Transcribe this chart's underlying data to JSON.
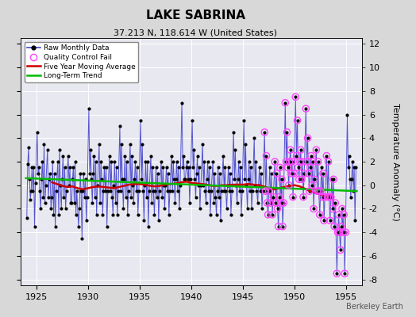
{
  "title": "LAKE SABRINA",
  "subtitle": "37.213 N, 118.614 W (United States)",
  "ylabel": "Temperature Anomaly (°C)",
  "watermark": "Berkeley Earth",
  "xlim": [
    1923.5,
    1956.5
  ],
  "ylim": [
    -8.5,
    12.5
  ],
  "yticks": [
    -8,
    -6,
    -4,
    -2,
    0,
    2,
    4,
    6,
    8,
    10,
    12
  ],
  "xticks": [
    1925,
    1930,
    1935,
    1940,
    1945,
    1950,
    1955
  ],
  "bg_color": "#d8d8d8",
  "plot_bg_color": "#e8e8f0",
  "grid_color": "#ffffff",
  "line_color": "#4444cc",
  "ma_color": "#cc0000",
  "trend_color": "#00bb00",
  "marker_color": "#000000",
  "qc_color": "#ff44ff",
  "raw_data": [
    [
      1924.08,
      -2.8
    ],
    [
      1924.17,
      1.8
    ],
    [
      1924.25,
      3.2
    ],
    [
      1924.33,
      0.5
    ],
    [
      1924.42,
      -1.2
    ],
    [
      1924.5,
      -0.5
    ],
    [
      1924.58,
      1.5
    ],
    [
      1924.67,
      -0.5
    ],
    [
      1924.75,
      1.5
    ],
    [
      1924.83,
      -3.5
    ],
    [
      1924.92,
      0.2
    ],
    [
      1925.08,
      4.5
    ],
    [
      1925.17,
      1.0
    ],
    [
      1925.25,
      1.5
    ],
    [
      1925.33,
      -0.5
    ],
    [
      1925.42,
      -2.0
    ],
    [
      1925.5,
      0.5
    ],
    [
      1925.58,
      2.0
    ],
    [
      1925.67,
      -1.0
    ],
    [
      1925.75,
      3.5
    ],
    [
      1925.83,
      -1.5
    ],
    [
      1925.92,
      0.0
    ],
    [
      1926.08,
      3.0
    ],
    [
      1926.17,
      -1.0
    ],
    [
      1926.25,
      0.5
    ],
    [
      1926.33,
      1.0
    ],
    [
      1926.42,
      -2.0
    ],
    [
      1926.5,
      -1.0
    ],
    [
      1926.58,
      2.0
    ],
    [
      1926.67,
      -2.5
    ],
    [
      1926.75,
      1.0
    ],
    [
      1926.83,
      -3.5
    ],
    [
      1926.92,
      -0.5
    ],
    [
      1927.08,
      2.0
    ],
    [
      1927.17,
      -2.5
    ],
    [
      1927.25,
      3.0
    ],
    [
      1927.33,
      0.0
    ],
    [
      1927.42,
      -2.0
    ],
    [
      1927.5,
      0.5
    ],
    [
      1927.58,
      2.5
    ],
    [
      1927.67,
      -1.0
    ],
    [
      1927.75,
      1.5
    ],
    [
      1927.83,
      -2.0
    ],
    [
      1927.92,
      -0.5
    ],
    [
      1928.08,
      2.5
    ],
    [
      1928.17,
      0.0
    ],
    [
      1928.25,
      1.5
    ],
    [
      1928.33,
      -1.5
    ],
    [
      1928.42,
      -1.5
    ],
    [
      1928.5,
      0.5
    ],
    [
      1928.58,
      1.5
    ],
    [
      1928.67,
      -1.5
    ],
    [
      1928.75,
      2.0
    ],
    [
      1928.83,
      -2.5
    ],
    [
      1928.92,
      -0.5
    ],
    [
      1929.08,
      -3.5
    ],
    [
      1929.17,
      -2.0
    ],
    [
      1929.25,
      1.0
    ],
    [
      1929.33,
      -0.5
    ],
    [
      1929.42,
      -4.5
    ],
    [
      1929.5,
      -0.5
    ],
    [
      1929.58,
      1.0
    ],
    [
      1929.67,
      -1.0
    ],
    [
      1929.75,
      0.5
    ],
    [
      1929.83,
      -3.0
    ],
    [
      1929.92,
      -1.0
    ],
    [
      1930.08,
      6.5
    ],
    [
      1930.17,
      1.0
    ],
    [
      1930.25,
      3.0
    ],
    [
      1930.33,
      0.5
    ],
    [
      1930.42,
      -1.5
    ],
    [
      1930.5,
      1.0
    ],
    [
      1930.58,
      2.5
    ],
    [
      1930.67,
      -1.0
    ],
    [
      1930.75,
      2.0
    ],
    [
      1930.83,
      -2.5
    ],
    [
      1930.92,
      0.0
    ],
    [
      1931.08,
      3.5
    ],
    [
      1931.17,
      -1.5
    ],
    [
      1931.25,
      2.0
    ],
    [
      1931.33,
      0.5
    ],
    [
      1931.42,
      -2.5
    ],
    [
      1931.5,
      -0.5
    ],
    [
      1931.58,
      1.5
    ],
    [
      1931.67,
      -0.5
    ],
    [
      1931.75,
      1.5
    ],
    [
      1931.83,
      -3.5
    ],
    [
      1931.92,
      -0.5
    ],
    [
      1932.08,
      2.5
    ],
    [
      1932.17,
      -0.5
    ],
    [
      1932.25,
      2.0
    ],
    [
      1932.33,
      -1.0
    ],
    [
      1932.42,
      -2.5
    ],
    [
      1932.5,
      0.0
    ],
    [
      1932.58,
      2.0
    ],
    [
      1932.67,
      -1.5
    ],
    [
      1932.75,
      1.5
    ],
    [
      1932.83,
      -2.5
    ],
    [
      1932.92,
      -0.5
    ],
    [
      1933.08,
      5.0
    ],
    [
      1933.17,
      -0.5
    ],
    [
      1933.25,
      3.5
    ],
    [
      1933.33,
      0.5
    ],
    [
      1933.42,
      -2.0
    ],
    [
      1933.5,
      0.5
    ],
    [
      1933.58,
      2.5
    ],
    [
      1933.67,
      -1.0
    ],
    [
      1933.75,
      2.0
    ],
    [
      1933.83,
      -2.5
    ],
    [
      1933.92,
      -0.5
    ],
    [
      1934.08,
      3.5
    ],
    [
      1934.17,
      -1.0
    ],
    [
      1934.25,
      2.5
    ],
    [
      1934.33,
      0.0
    ],
    [
      1934.42,
      -1.5
    ],
    [
      1934.5,
      0.5
    ],
    [
      1934.58,
      2.0
    ],
    [
      1934.67,
      -0.5
    ],
    [
      1934.75,
      1.5
    ],
    [
      1934.83,
      -2.5
    ],
    [
      1934.92,
      -0.5
    ],
    [
      1935.08,
      5.5
    ],
    [
      1935.17,
      0.5
    ],
    [
      1935.25,
      3.5
    ],
    [
      1935.33,
      -0.5
    ],
    [
      1935.42,
      -3.0
    ],
    [
      1935.5,
      0.0
    ],
    [
      1935.58,
      2.0
    ],
    [
      1935.67,
      -1.0
    ],
    [
      1935.75,
      2.0
    ],
    [
      1935.83,
      -3.5
    ],
    [
      1935.92,
      -0.5
    ],
    [
      1936.08,
      2.5
    ],
    [
      1936.17,
      -1.5
    ],
    [
      1936.25,
      1.5
    ],
    [
      1936.33,
      -0.5
    ],
    [
      1936.42,
      -2.5
    ],
    [
      1936.5,
      -0.5
    ],
    [
      1936.58,
      1.5
    ],
    [
      1936.67,
      -1.0
    ],
    [
      1936.75,
      1.0
    ],
    [
      1936.83,
      -3.0
    ],
    [
      1936.92,
      -0.5
    ],
    [
      1937.08,
      2.0
    ],
    [
      1937.17,
      -1.0
    ],
    [
      1937.25,
      1.5
    ],
    [
      1937.33,
      0.0
    ],
    [
      1937.42,
      -2.0
    ],
    [
      1937.5,
      0.0
    ],
    [
      1937.58,
      1.5
    ],
    [
      1937.67,
      -0.5
    ],
    [
      1937.75,
      1.0
    ],
    [
      1937.83,
      -2.5
    ],
    [
      1937.92,
      -0.5
    ],
    [
      1938.08,
      2.5
    ],
    [
      1938.17,
      -0.5
    ],
    [
      1938.25,
      2.0
    ],
    [
      1938.33,
      0.5
    ],
    [
      1938.42,
      -1.5
    ],
    [
      1938.5,
      0.5
    ],
    [
      1938.58,
      2.0
    ],
    [
      1938.67,
      -0.5
    ],
    [
      1938.75,
      1.5
    ],
    [
      1938.83,
      -2.0
    ],
    [
      1938.92,
      0.0
    ],
    [
      1939.08,
      7.0
    ],
    [
      1939.17,
      1.5
    ],
    [
      1939.25,
      2.5
    ],
    [
      1939.33,
      0.5
    ],
    [
      1939.42,
      0.5
    ],
    [
      1939.5,
      1.5
    ],
    [
      1939.58,
      2.0
    ],
    [
      1939.67,
      0.5
    ],
    [
      1939.75,
      1.5
    ],
    [
      1939.83,
      -1.5
    ],
    [
      1939.92,
      0.5
    ],
    [
      1940.08,
      5.5
    ],
    [
      1940.17,
      1.5
    ],
    [
      1940.25,
      3.0
    ],
    [
      1940.33,
      0.5
    ],
    [
      1940.42,
      -1.0
    ],
    [
      1940.5,
      1.0
    ],
    [
      1940.58,
      2.5
    ],
    [
      1940.67,
      0.0
    ],
    [
      1940.75,
      1.5
    ],
    [
      1940.83,
      -2.0
    ],
    [
      1940.92,
      0.0
    ],
    [
      1941.08,
      3.5
    ],
    [
      1941.17,
      0.0
    ],
    [
      1941.25,
      2.0
    ],
    [
      1941.33,
      -0.5
    ],
    [
      1941.42,
      -1.5
    ],
    [
      1941.5,
      0.5
    ],
    [
      1941.58,
      2.0
    ],
    [
      1941.67,
      -0.5
    ],
    [
      1941.75,
      1.5
    ],
    [
      1941.83,
      -2.5
    ],
    [
      1941.92,
      -0.5
    ],
    [
      1942.08,
      2.0
    ],
    [
      1942.17,
      -1.5
    ],
    [
      1942.25,
      1.0
    ],
    [
      1942.33,
      -1.0
    ],
    [
      1942.42,
      -2.5
    ],
    [
      1942.5,
      -0.5
    ],
    [
      1942.58,
      1.5
    ],
    [
      1942.67,
      -1.0
    ],
    [
      1942.75,
      1.0
    ],
    [
      1942.83,
      -3.0
    ],
    [
      1942.92,
      -0.5
    ],
    [
      1943.08,
      2.5
    ],
    [
      1943.17,
      -0.5
    ],
    [
      1943.25,
      1.5
    ],
    [
      1943.33,
      -0.5
    ],
    [
      1943.42,
      -2.0
    ],
    [
      1943.5,
      0.0
    ],
    [
      1943.58,
      1.5
    ],
    [
      1943.67,
      -0.5
    ],
    [
      1943.75,
      1.0
    ],
    [
      1943.83,
      -2.5
    ],
    [
      1943.92,
      -0.5
    ],
    [
      1944.08,
      4.5
    ],
    [
      1944.17,
      0.5
    ],
    [
      1944.25,
      3.0
    ],
    [
      1944.33,
      0.0
    ],
    [
      1944.42,
      -1.5
    ],
    [
      1944.5,
      0.5
    ],
    [
      1944.58,
      2.0
    ],
    [
      1944.67,
      -0.5
    ],
    [
      1944.75,
      1.5
    ],
    [
      1944.83,
      -2.5
    ],
    [
      1944.92,
      -0.5
    ],
    [
      1945.08,
      5.5
    ],
    [
      1945.17,
      0.5
    ],
    [
      1945.25,
      3.5
    ],
    [
      1945.33,
      0.0
    ],
    [
      1945.42,
      -2.0
    ],
    [
      1945.5,
      0.5
    ],
    [
      1945.58,
      2.0
    ],
    [
      1945.67,
      -0.5
    ],
    [
      1945.75,
      1.5
    ],
    [
      1945.83,
      -2.0
    ],
    [
      1945.92,
      -0.5
    ],
    [
      1946.08,
      4.0
    ],
    [
      1946.17,
      0.0
    ],
    [
      1946.25,
      2.0
    ],
    [
      1946.33,
      -0.5
    ],
    [
      1946.42,
      -1.5
    ],
    [
      1946.5,
      0.0
    ],
    [
      1946.58,
      1.5
    ],
    [
      1946.67,
      -0.5
    ],
    [
      1946.75,
      1.0
    ],
    [
      1946.83,
      -2.0
    ],
    [
      1946.92,
      -0.5
    ],
    [
      1947.08,
      4.5
    ],
    [
      1947.17,
      -0.5
    ],
    [
      1947.25,
      2.5
    ],
    [
      1947.33,
      -1.5
    ],
    [
      1947.42,
      -2.5
    ],
    [
      1947.5,
      -0.5
    ],
    [
      1947.58,
      1.5
    ],
    [
      1947.67,
      -1.5
    ],
    [
      1947.75,
      1.0
    ],
    [
      1947.83,
      -2.5
    ],
    [
      1947.92,
      -1.0
    ],
    [
      1948.08,
      2.0
    ],
    [
      1948.17,
      -1.5
    ],
    [
      1948.25,
      1.0
    ],
    [
      1948.33,
      -2.0
    ],
    [
      1948.42,
      -3.5
    ],
    [
      1948.5,
      -1.0
    ],
    [
      1948.58,
      1.5
    ],
    [
      1948.67,
      -1.5
    ],
    [
      1948.75,
      0.5
    ],
    [
      1948.83,
      -3.5
    ],
    [
      1948.92,
      -1.5
    ],
    [
      1949.08,
      7.0
    ],
    [
      1949.17,
      2.0
    ],
    [
      1949.25,
      4.5
    ],
    [
      1949.33,
      1.5
    ],
    [
      1949.42,
      0.0
    ],
    [
      1949.5,
      2.0
    ],
    [
      1949.58,
      3.0
    ],
    [
      1949.67,
      1.0
    ],
    [
      1949.75,
      2.0
    ],
    [
      1949.83,
      -1.0
    ],
    [
      1949.92,
      1.0
    ],
    [
      1950.08,
      7.5
    ],
    [
      1950.17,
      2.5
    ],
    [
      1950.25,
      5.5
    ],
    [
      1950.33,
      1.5
    ],
    [
      1950.42,
      0.5
    ],
    [
      1950.5,
      2.0
    ],
    [
      1950.58,
      3.0
    ],
    [
      1950.67,
      0.5
    ],
    [
      1950.75,
      2.0
    ],
    [
      1950.83,
      -1.0
    ],
    [
      1950.92,
      1.0
    ],
    [
      1951.08,
      6.5
    ],
    [
      1951.17,
      2.0
    ],
    [
      1951.25,
      4.0
    ],
    [
      1951.33,
      1.0
    ],
    [
      1951.42,
      -0.5
    ],
    [
      1951.5,
      1.5
    ],
    [
      1951.58,
      2.5
    ],
    [
      1951.67,
      0.0
    ],
    [
      1951.75,
      2.0
    ],
    [
      1951.83,
      -2.0
    ],
    [
      1951.92,
      0.5
    ],
    [
      1952.08,
      3.0
    ],
    [
      1952.17,
      -0.5
    ],
    [
      1952.25,
      2.0
    ],
    [
      1952.33,
      -0.5
    ],
    [
      1952.42,
      -2.5
    ],
    [
      1952.5,
      -0.5
    ],
    [
      1952.58,
      1.5
    ],
    [
      1952.67,
      -1.0
    ],
    [
      1952.75,
      1.0
    ],
    [
      1952.83,
      -3.0
    ],
    [
      1952.92,
      -1.0
    ],
    [
      1953.08,
      2.5
    ],
    [
      1953.17,
      -1.0
    ],
    [
      1953.25,
      2.0
    ],
    [
      1953.33,
      -1.0
    ],
    [
      1953.42,
      -3.0
    ],
    [
      1953.5,
      -1.0
    ],
    [
      1953.58,
      0.5
    ],
    [
      1953.67,
      -2.0
    ],
    [
      1953.75,
      0.5
    ],
    [
      1953.83,
      -3.5
    ],
    [
      1953.92,
      -1.5
    ],
    [
      1954.08,
      -7.5
    ],
    [
      1954.17,
      -4.0
    ],
    [
      1954.25,
      -2.5
    ],
    [
      1954.33,
      -4.0
    ],
    [
      1954.42,
      -5.5
    ],
    [
      1954.5,
      -3.5
    ],
    [
      1954.58,
      -2.0
    ],
    [
      1954.67,
      -4.0
    ],
    [
      1954.75,
      -2.5
    ],
    [
      1954.83,
      -7.5
    ],
    [
      1954.92,
      -4.0
    ],
    [
      1955.08,
      6.0
    ],
    [
      1955.17,
      1.5
    ],
    [
      1955.25,
      2.5
    ],
    [
      1955.33,
      0.5
    ],
    [
      1955.42,
      -1.0
    ],
    [
      1955.5,
      0.5
    ],
    [
      1955.58,
      2.0
    ],
    [
      1955.67,
      -0.5
    ],
    [
      1955.75,
      1.5
    ],
    [
      1955.83,
      -3.0
    ],
    [
      1955.92,
      1.5
    ]
  ],
  "qc_x": [
    1947.08,
    1947.17,
    1947.25,
    1947.33,
    1947.42,
    1947.5,
    1947.67,
    1947.83,
    1947.92,
    1948.08,
    1948.17,
    1948.25,
    1948.33,
    1948.42,
    1948.5,
    1948.58,
    1948.67,
    1948.75,
    1948.83,
    1948.92,
    1949.08,
    1949.17,
    1949.25,
    1949.33,
    1949.42,
    1949.5,
    1949.58,
    1949.67,
    1949.75,
    1949.83,
    1949.92,
    1950.08,
    1950.17,
    1950.25,
    1950.33,
    1950.42,
    1950.5,
    1950.58,
    1950.67,
    1950.75,
    1950.83,
    1950.92,
    1951.08,
    1951.17,
    1951.25,
    1951.33,
    1951.42,
    1951.5,
    1951.58,
    1951.67,
    1951.75,
    1951.83,
    1951.92,
    1952.08,
    1952.17,
    1952.25,
    1952.33,
    1952.42,
    1952.5,
    1952.67,
    1952.75,
    1952.83,
    1952.92,
    1953.08,
    1953.17,
    1953.25,
    1953.33,
    1953.42,
    1953.5,
    1953.67,
    1953.75,
    1953.83,
    1953.92,
    1954.08,
    1954.17,
    1954.25,
    1954.33,
    1954.42,
    1954.5,
    1954.58,
    1954.67,
    1954.75,
    1954.83,
    1954.92
  ],
  "qc_y": [
    4.5,
    -0.5,
    2.5,
    -1.5,
    -2.5,
    -0.5,
    -1.5,
    -2.5,
    -1.0,
    2.0,
    -1.5,
    1.0,
    -2.0,
    -3.5,
    -1.0,
    1.5,
    -1.5,
    0.5,
    -3.5,
    -1.5,
    7.0,
    2.0,
    4.5,
    1.5,
    0.0,
    2.0,
    3.0,
    1.0,
    2.0,
    -1.0,
    1.0,
    7.5,
    2.5,
    5.5,
    1.5,
    0.5,
    2.0,
    3.0,
    0.5,
    2.0,
    -1.0,
    1.0,
    6.5,
    2.0,
    4.0,
    1.0,
    -0.5,
    1.5,
    2.5,
    0.0,
    2.0,
    -2.0,
    0.5,
    3.0,
    -0.5,
    2.0,
    -0.5,
    -2.5,
    -0.5,
    -1.0,
    1.0,
    -3.0,
    -1.0,
    2.5,
    -1.0,
    2.0,
    -1.0,
    -3.0,
    -1.0,
    -2.0,
    0.5,
    -3.5,
    -1.5,
    -7.5,
    -4.0,
    -2.5,
    -4.0,
    -5.5,
    -3.5,
    -2.0,
    -4.0,
    -2.5,
    -7.5,
    -4.0
  ],
  "moving_avg_x": [
    1926.5,
    1927.0,
    1927.5,
    1928.0,
    1928.5,
    1929.0,
    1929.5,
    1930.0,
    1930.5,
    1931.0,
    1931.5,
    1932.0,
    1932.5,
    1933.0,
    1933.5,
    1934.0,
    1934.5,
    1935.0,
    1935.5,
    1936.0,
    1936.5,
    1937.0,
    1937.5,
    1938.0,
    1938.5,
    1939.0,
    1939.5,
    1940.0,
    1940.5,
    1941.0,
    1941.5,
    1942.0,
    1942.5,
    1943.0,
    1943.5,
    1944.0,
    1944.5,
    1945.0,
    1945.5,
    1946.0,
    1946.5,
    1947.0,
    1947.5,
    1948.0,
    1948.5,
    1949.0,
    1949.5,
    1950.0,
    1950.5,
    1951.0,
    1951.5,
    1952.0,
    1952.5,
    1953.0,
    1953.5
  ],
  "moving_avg_y": [
    0.25,
    0.1,
    -0.05,
    -0.15,
    -0.1,
    -0.25,
    -0.35,
    -0.25,
    -0.15,
    -0.1,
    -0.15,
    -0.2,
    -0.25,
    -0.15,
    -0.05,
    0.05,
    0.1,
    0.1,
    0.05,
    -0.05,
    -0.1,
    -0.05,
    0.05,
    0.1,
    0.15,
    0.25,
    0.3,
    0.2,
    0.15,
    0.1,
    0.05,
    -0.05,
    -0.05,
    0.0,
    0.0,
    0.05,
    0.05,
    0.05,
    0.1,
    0.05,
    0.0,
    -0.1,
    -0.25,
    -0.35,
    -0.25,
    -0.15,
    -0.05,
    0.0,
    -0.1,
    -0.3,
    -0.5,
    -0.65,
    -0.8,
    -0.9,
    -0.85
  ],
  "trend_x": [
    1924.0,
    1956.0
  ],
  "trend_y": [
    0.6,
    -0.5
  ],
  "title_fontsize": 11,
  "subtitle_fontsize": 8,
  "tick_fontsize": 8,
  "ylabel_fontsize": 8
}
